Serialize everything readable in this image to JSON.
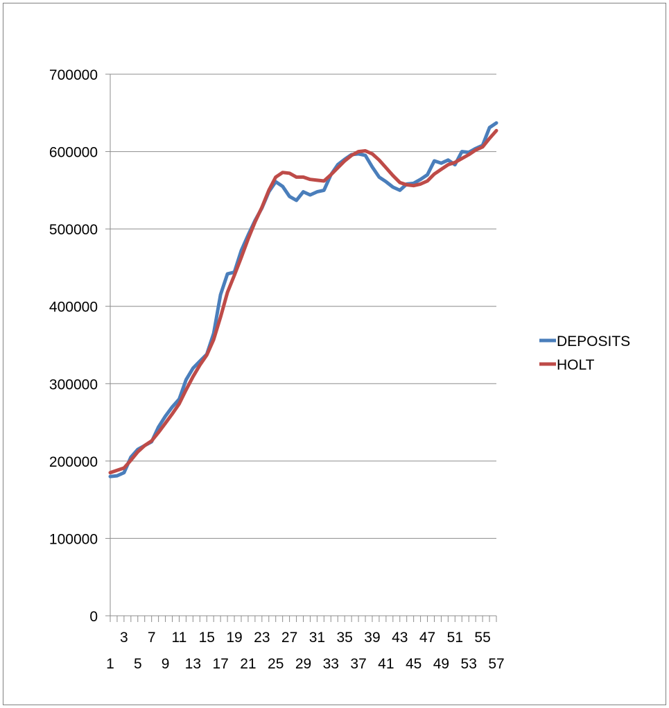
{
  "chart_data": {
    "type": "line",
    "title": "",
    "xlabel": "",
    "ylabel": "",
    "x": [
      1,
      2,
      3,
      4,
      5,
      6,
      7,
      8,
      9,
      10,
      11,
      12,
      13,
      14,
      15,
      16,
      17,
      18,
      19,
      20,
      21,
      22,
      23,
      24,
      25,
      26,
      27,
      28,
      29,
      30,
      31,
      32,
      33,
      34,
      35,
      36,
      37,
      38,
      39,
      40,
      41,
      42,
      43,
      44,
      45,
      46,
      47,
      48,
      49,
      50,
      51,
      52,
      53,
      54,
      55,
      56,
      57
    ],
    "x_tick_labels_upper": [
      "3",
      "7",
      "11",
      "15",
      "19",
      "23",
      "27",
      "31",
      "35",
      "39",
      "43",
      "47",
      "51",
      "55"
    ],
    "x_tick_labels_lower": [
      "1",
      "5",
      "9",
      "13",
      "17",
      "21",
      "25",
      "29",
      "33",
      "37",
      "41",
      "45",
      "49",
      "53",
      "57"
    ],
    "y_ticks": [
      "0",
      "100000",
      "200000",
      "300000",
      "400000",
      "500000",
      "600000",
      "700000"
    ],
    "ylim": [
      0,
      700000
    ],
    "grid": "horizontal",
    "legend_position": "right",
    "series": [
      {
        "name": "DEPOSITS",
        "color": "#4a7ebb",
        "values": [
          180000,
          181000,
          185000,
          205000,
          215000,
          220000,
          225000,
          244000,
          258000,
          270000,
          280000,
          305000,
          320000,
          329000,
          338000,
          365000,
          415000,
          442000,
          444000,
          472000,
          492000,
          511000,
          527000,
          548000,
          561000,
          555000,
          542000,
          537000,
          548000,
          544000,
          548000,
          550000,
          570000,
          583000,
          590000,
          596000,
          597000,
          595000,
          580000,
          567000,
          561000,
          554000,
          550000,
          558000,
          559000,
          564000,
          570000,
          588000,
          585000,
          589000,
          583000,
          600000,
          599000,
          604000,
          608000,
          631000,
          637000
        ]
      },
      {
        "name": "HOLT",
        "color": "#be4b48",
        "values": [
          185000,
          188000,
          191000,
          201000,
          212000,
          220000,
          226000,
          237000,
          249000,
          261000,
          274000,
          292000,
          309000,
          324000,
          337000,
          357000,
          386000,
          418000,
          440000,
          463000,
          487000,
          509000,
          528000,
          550000,
          567000,
          573000,
          572000,
          567000,
          567000,
          564000,
          563000,
          562000,
          570000,
          579000,
          588000,
          595000,
          600000,
          601000,
          597000,
          589000,
          579000,
          569000,
          560000,
          557000,
          556000,
          558000,
          562000,
          571000,
          577000,
          583000,
          586000,
          591000,
          596000,
          602000,
          606000,
          617000,
          627000
        ]
      }
    ]
  }
}
